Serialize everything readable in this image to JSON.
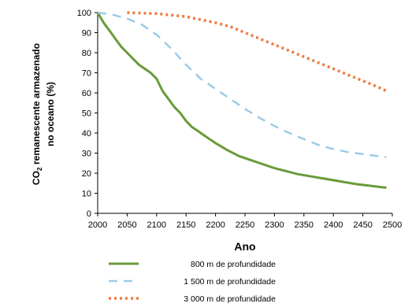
{
  "chart_data": {
    "type": "line",
    "title": "",
    "xlabel": "Ano",
    "ylabel_line1_prefix": "CO",
    "ylabel_line1_subscript": "2",
    "ylabel_line1_suffix": " remanescente armazenado",
    "ylabel_line2": "no oceano (%)",
    "xlim": [
      2000,
      2500
    ],
    "ylim": [
      0,
      100
    ],
    "x_ticks": [
      "2000",
      "2050",
      "2100",
      "2150",
      "2200",
      "2250",
      "2300",
      "2350",
      "2400",
      "2450",
      "2500"
    ],
    "y_ticks": [
      "0",
      "10",
      "20",
      "30",
      "40",
      "50",
      "60",
      "70",
      "80",
      "90",
      "100"
    ],
    "grid": false,
    "legend_position": "bottom",
    "series": [
      {
        "name": "800 m de profundidade",
        "color": "#6a9a3a",
        "style": "solid",
        "x": [
          2000,
          2010,
          2020,
          2030,
          2040,
          2050,
          2060,
          2070,
          2080,
          2090,
          2100,
          2110,
          2120,
          2130,
          2140,
          2150,
          2160,
          2170,
          2180,
          2190,
          2200,
          2220,
          2240,
          2260,
          2280,
          2300,
          2320,
          2340,
          2360,
          2380,
          2400,
          2420,
          2440,
          2460,
          2480,
          2490
        ],
        "y": [
          100,
          95,
          91,
          87,
          83,
          80,
          77,
          74,
          72,
          70,
          67,
          61,
          57,
          53,
          50,
          46,
          43,
          41,
          39,
          37,
          35,
          31.5,
          28.5,
          26.5,
          24.5,
          22.5,
          21,
          19.5,
          18.5,
          17.5,
          16.5,
          15.5,
          14.5,
          13.8,
          13.1,
          12.8
        ]
      },
      {
        "name": "1 500 m de profundidade",
        "color": "#9dcbe6",
        "style": "dashed",
        "x": [
          2000,
          2025,
          2050,
          2075,
          2100,
          2125,
          2150,
          2175,
          2200,
          2225,
          2250,
          2275,
          2300,
          2325,
          2350,
          2375,
          2400,
          2425,
          2450,
          2475,
          2490
        ],
        "y": [
          100,
          99,
          97,
          94,
          89,
          82,
          74,
          67,
          62,
          57,
          52,
          47.5,
          43.5,
          40,
          37,
          34,
          32,
          30.5,
          29.5,
          28.5,
          28
        ]
      },
      {
        "name": "3 000 m de profundidade",
        "color": "#f0793c",
        "style": "dotted",
        "x": [
          2050,
          2100,
          2150,
          2200,
          2225,
          2250,
          2275,
          2300,
          2325,
          2350,
          2375,
          2400,
          2425,
          2450,
          2475,
          2490
        ],
        "y": [
          100,
          99.5,
          98,
          95,
          93,
          90,
          87,
          84,
          81,
          78,
          75,
          72,
          69,
          66,
          63,
          61
        ]
      }
    ]
  }
}
